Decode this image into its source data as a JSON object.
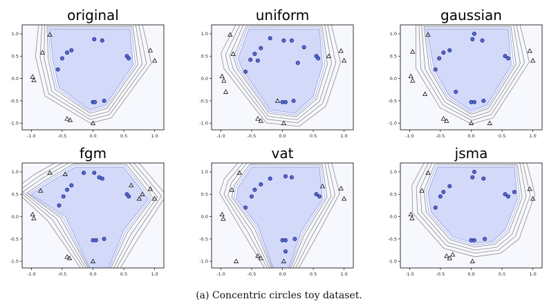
{
  "caption": "(a) Concentric circles toy dataset.",
  "colors": {
    "background": "#f7f8fe",
    "region_fill": "#d3d9f8",
    "region_edge": "#8f9be0",
    "contour": "#8a8a8a",
    "circle_fill": "#5468d8",
    "circle_edge": "#1d2a78",
    "triangle_edge": "#111111"
  },
  "chart_data": [
    {
      "type": "scatter",
      "title": "original",
      "xlim": [
        -1.15,
        1.15
      ],
      "ylim": [
        -1.15,
        1.2
      ],
      "xticks": [
        "-1.0",
        "-0.5",
        "0.0",
        "0.5",
        "1.0"
      ],
      "yticks": [
        "1.0",
        "0.5",
        "0.0",
        "-0.5",
        "-1.0"
      ],
      "region": [
        [
          -0.7,
          1.1
        ],
        [
          0.6,
          1.1
        ],
        [
          0.65,
          0.3
        ],
        [
          0.2,
          -0.6
        ],
        [
          -0.05,
          -0.7
        ],
        [
          -0.55,
          -0.2
        ],
        [
          -0.65,
          0.4
        ]
      ],
      "circles": [
        [
          0.02,
          0.88
        ],
        [
          0.15,
          0.85
        ],
        [
          -0.35,
          0.63
        ],
        [
          -0.42,
          0.58
        ],
        [
          -0.5,
          0.45
        ],
        [
          -0.57,
          0.2
        ],
        [
          0.55,
          0.5
        ],
        [
          0.58,
          0.45
        ],
        [
          0.0,
          -0.53
        ],
        [
          0.03,
          -0.53
        ],
        [
          0.18,
          -0.5
        ]
      ],
      "triangles": [
        [
          -0.7,
          0.98
        ],
        [
          -0.82,
          0.58
        ],
        [
          -0.98,
          0.04
        ],
        [
          -0.96,
          -0.04
        ],
        [
          -0.42,
          -0.9
        ],
        [
          -0.37,
          -0.93
        ],
        [
          0.0,
          -1.0
        ],
        [
          0.93,
          0.63
        ],
        [
          1.0,
          0.4
        ]
      ]
    },
    {
      "type": "scatter",
      "title": "uniform",
      "xlim": [
        -1.15,
        1.15
      ],
      "ylim": [
        -1.15,
        1.2
      ],
      "xticks": [
        "-1.0",
        "-0.5",
        "0.0",
        "0.5",
        "1.0"
      ],
      "yticks": [
        "1.0",
        "0.5",
        "0.0",
        "-0.5",
        "-1.0"
      ],
      "region": [
        [
          -0.55,
          1.1
        ],
        [
          0.6,
          1.1
        ],
        [
          0.65,
          0.3
        ],
        [
          0.5,
          -0.4
        ],
        [
          0.2,
          -0.78
        ],
        [
          -0.2,
          -0.7
        ],
        [
          -0.65,
          0.2
        ],
        [
          -0.72,
          0.45
        ]
      ],
      "circles": [
        [
          -0.2,
          0.9
        ],
        [
          0.02,
          0.85
        ],
        [
          0.15,
          0.85
        ],
        [
          -0.35,
          0.68
        ],
        [
          -0.45,
          0.55
        ],
        [
          -0.52,
          0.42
        ],
        [
          -0.4,
          0.4
        ],
        [
          -0.6,
          0.15
        ],
        [
          0.35,
          0.7
        ],
        [
          0.55,
          0.5
        ],
        [
          0.58,
          0.45
        ],
        [
          0.0,
          -0.53
        ],
        [
          0.05,
          -0.53
        ],
        [
          0.18,
          -0.5
        ],
        [
          0.25,
          0.35
        ]
      ],
      "triangles": [
        [
          -0.85,
          0.98
        ],
        [
          -0.8,
          0.55
        ],
        [
          -0.98,
          0.05
        ],
        [
          -0.95,
          -0.05
        ],
        [
          -0.92,
          -0.3
        ],
        [
          -0.4,
          -0.9
        ],
        [
          -0.35,
          -0.95
        ],
        [
          0.02,
          -1.0
        ],
        [
          0.95,
          0.62
        ],
        [
          1.0,
          0.4
        ],
        [
          0.75,
          0.5
        ],
        [
          -0.08,
          -0.5
        ]
      ]
    },
    {
      "type": "scatter",
      "title": "gaussian",
      "xlim": [
        -1.15,
        1.15
      ],
      "ylim": [
        -1.15,
        1.2
      ],
      "xticks": [
        "-1.0",
        "-0.5",
        "0.0",
        "0.5",
        "1.0"
      ],
      "yticks": [
        "1.0",
        "0.5",
        "0.0",
        "-0.5",
        "-1.0"
      ],
      "region": [
        [
          -0.72,
          1.1
        ],
        [
          0.6,
          1.1
        ],
        [
          0.65,
          0.3
        ],
        [
          0.25,
          -0.6
        ],
        [
          0.0,
          -0.72
        ],
        [
          -0.35,
          -0.4
        ],
        [
          -0.6,
          0.2
        ]
      ],
      "circles": [
        [
          0.05,
          1.0
        ],
        [
          0.02,
          0.88
        ],
        [
          0.18,
          0.85
        ],
        [
          -0.35,
          0.63
        ],
        [
          -0.45,
          0.58
        ],
        [
          -0.52,
          0.45
        ],
        [
          -0.58,
          0.2
        ],
        [
          0.55,
          0.5
        ],
        [
          0.6,
          0.45
        ],
        [
          0.0,
          -0.53
        ],
        [
          0.05,
          -0.53
        ],
        [
          0.2,
          -0.5
        ],
        [
          -0.25,
          -0.3
        ]
      ],
      "triangles": [
        [
          -0.7,
          0.98
        ],
        [
          -0.95,
          0.6
        ],
        [
          -0.98,
          0.05
        ],
        [
          -0.95,
          -0.05
        ],
        [
          -0.75,
          -0.35
        ],
        [
          -0.45,
          -0.9
        ],
        [
          -0.4,
          -0.95
        ],
        [
          0.0,
          -1.0
        ],
        [
          0.95,
          0.62
        ],
        [
          1.0,
          0.4
        ],
        [
          0.3,
          -1.0
        ]
      ]
    },
    {
      "type": "scatter",
      "title": "fgm",
      "xlim": [
        -1.15,
        1.15
      ],
      "ylim": [
        -1.15,
        1.2
      ],
      "xticks": [
        "-1.0",
        "-0.5",
        "0.0",
        "0.5",
        "1.0"
      ],
      "yticks": [
        "1.0",
        "0.5",
        "0.0",
        "-0.5",
        "-1.0"
      ],
      "region": [
        [
          -0.3,
          1.1
        ],
        [
          0.5,
          1.1
        ],
        [
          0.9,
          0.4
        ],
        [
          0.5,
          -0.3
        ],
        [
          0.25,
          -1.15
        ],
        [
          -0.05,
          -1.15
        ],
        [
          -0.45,
          0.0
        ],
        [
          -1.0,
          0.5
        ],
        [
          -0.72,
          0.75
        ]
      ],
      "circles": [
        [
          0.02,
          0.98
        ],
        [
          0.1,
          0.88
        ],
        [
          0.15,
          0.85
        ],
        [
          -0.35,
          0.7
        ],
        [
          -0.42,
          0.6
        ],
        [
          -0.48,
          0.45
        ],
        [
          -0.55,
          0.25
        ],
        [
          0.55,
          0.5
        ],
        [
          0.58,
          0.45
        ],
        [
          0.0,
          -0.53
        ],
        [
          0.05,
          -0.53
        ],
        [
          0.18,
          -0.5
        ],
        [
          -0.15,
          0.98
        ]
      ],
      "triangles": [
        [
          -0.7,
          0.98
        ],
        [
          -0.45,
          0.95
        ],
        [
          -0.85,
          0.58
        ],
        [
          -0.98,
          0.05
        ],
        [
          -0.96,
          -0.04
        ],
        [
          -0.42,
          -0.9
        ],
        [
          -0.38,
          -0.93
        ],
        [
          0.0,
          -1.0
        ],
        [
          0.93,
          0.62
        ],
        [
          1.0,
          0.4
        ],
        [
          0.62,
          0.7
        ],
        [
          0.8,
          0.5
        ],
        [
          0.75,
          0.4
        ]
      ]
    },
    {
      "type": "scatter",
      "title": "vat",
      "xlim": [
        -1.15,
        1.15
      ],
      "ylim": [
        -1.15,
        1.2
      ],
      "xticks": [
        "-1.0",
        "-0.5",
        "0.0",
        "0.5",
        "1.0"
      ],
      "yticks": [
        "1.0",
        "0.5",
        "0.0",
        "-0.5",
        "-1.0"
      ],
      "region": [
        [
          -0.5,
          1.1
        ],
        [
          0.6,
          1.1
        ],
        [
          0.65,
          0.4
        ],
        [
          0.3,
          -0.35
        ],
        [
          0.1,
          -1.15
        ],
        [
          -0.15,
          -1.15
        ],
        [
          -0.4,
          -0.2
        ],
        [
          -0.75,
          0.4
        ],
        [
          -0.72,
          0.65
        ]
      ],
      "circles": [
        [
          0.05,
          0.9
        ],
        [
          0.15,
          0.88
        ],
        [
          -0.35,
          0.72
        ],
        [
          -0.45,
          0.6
        ],
        [
          -0.5,
          0.45
        ],
        [
          -0.6,
          0.2
        ],
        [
          0.55,
          0.5
        ],
        [
          0.6,
          0.45
        ],
        [
          0.0,
          -0.53
        ],
        [
          0.05,
          -0.53
        ],
        [
          0.2,
          -0.5
        ],
        [
          0.05,
          -0.78
        ],
        [
          -0.2,
          0.85
        ]
      ],
      "triangles": [
        [
          -0.7,
          0.98
        ],
        [
          -0.82,
          0.6
        ],
        [
          -0.98,
          0.05
        ],
        [
          -0.96,
          -0.05
        ],
        [
          -0.4,
          -0.88
        ],
        [
          -0.35,
          -0.93
        ],
        [
          0.02,
          -1.0
        ],
        [
          0.95,
          0.63
        ],
        [
          1.0,
          0.4
        ],
        [
          0.65,
          0.68
        ],
        [
          -0.75,
          -1.0
        ]
      ]
    },
    {
      "type": "scatter",
      "title": "jsma",
      "xlim": [
        -1.15,
        1.15
      ],
      "ylim": [
        -1.15,
        1.2
      ],
      "xticks": [
        "-1.0",
        "-0.5",
        "0.0",
        "0.5",
        "1.0"
      ],
      "yticks": [
        "1.0",
        "0.5",
        "0.0",
        "-0.5",
        "-1.0"
      ],
      "region": [
        [
          -0.55,
          1.1
        ],
        [
          0.7,
          1.1
        ],
        [
          0.75,
          0.4
        ],
        [
          0.55,
          -0.3
        ],
        [
          0.35,
          -0.55
        ],
        [
          0.05,
          -0.6
        ],
        [
          -0.3,
          -0.45
        ],
        [
          -0.65,
          0.1
        ],
        [
          -0.7,
          0.55
        ]
      ],
      "circles": [
        [
          0.05,
          1.0
        ],
        [
          0.02,
          0.88
        ],
        [
          0.2,
          0.85
        ],
        [
          -0.35,
          0.68
        ],
        [
          -0.45,
          0.55
        ],
        [
          -0.5,
          0.45
        ],
        [
          -0.58,
          0.2
        ],
        [
          0.55,
          0.5
        ],
        [
          0.6,
          0.45
        ],
        [
          0.0,
          -0.53
        ],
        [
          0.05,
          -0.53
        ],
        [
          0.22,
          -0.5
        ],
        [
          0.7,
          0.55
        ]
      ],
      "triangles": [
        [
          -0.7,
          0.98
        ],
        [
          -0.8,
          0.58
        ],
        [
          -0.98,
          0.05
        ],
        [
          -0.96,
          -0.04
        ],
        [
          -0.4,
          -0.88
        ],
        [
          -0.35,
          -0.93
        ],
        [
          0.02,
          -1.0
        ],
        [
          0.95,
          0.62
        ],
        [
          1.0,
          0.4
        ],
        [
          -0.3,
          -0.85
        ]
      ]
    }
  ]
}
